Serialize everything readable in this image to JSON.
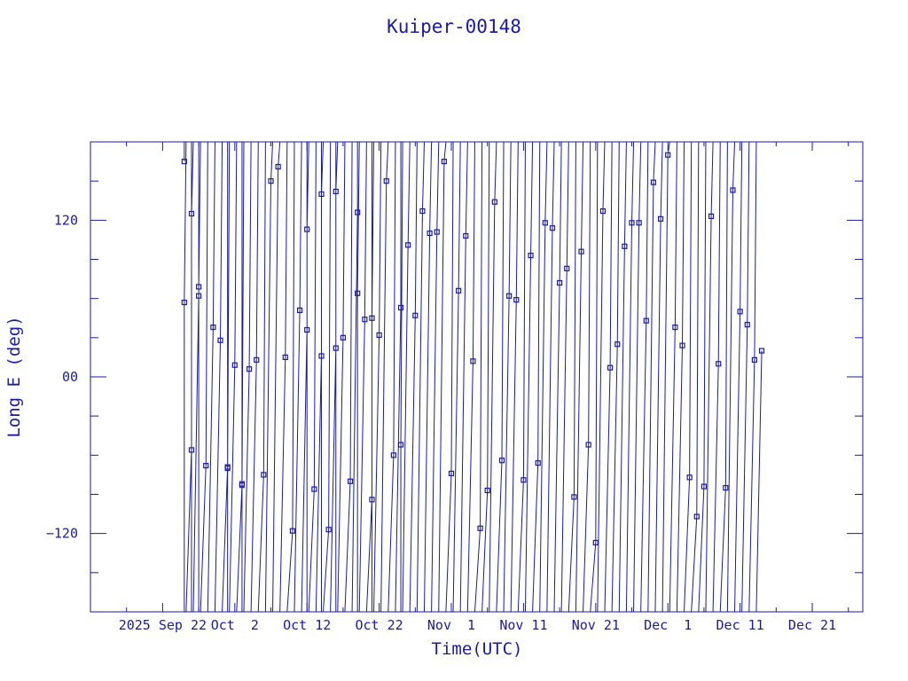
{
  "chart_data": {
    "type": "line",
    "title": "Kuiper-00148",
    "xlabel": "Time(UTC)",
    "ylabel": "Long E (deg)",
    "x_tick_labels": [
      "2025 Sep 22",
      "Oct  2",
      "Oct 12",
      "Oct 22",
      "Nov  1",
      "Nov 11",
      "Nov 21",
      "Dec  1",
      "Dec 11",
      "Dec 21"
    ],
    "x_tick_dates": [
      "2025-09-22",
      "2025-10-02",
      "2025-10-12",
      "2025-10-22",
      "2025-11-01",
      "2025-11-11",
      "2025-11-21",
      "2025-12-01",
      "2025-12-11",
      "2025-12-21"
    ],
    "xlim": [
      "2025-09-12",
      "2025-12-28"
    ],
    "y_ticks": [
      -120,
      0,
      120
    ],
    "y_tick_labels": [
      "−120",
      "00",
      "120"
    ],
    "ylim": [
      -180,
      180
    ],
    "grid": false,
    "line_color": "#1a1aa6",
    "marker": "square",
    "series": [
      {
        "x": [
          "2025-09-25",
          "2025-09-25",
          "2025-09-26",
          "2025-09-26",
          "2025-09-27",
          "2025-09-27",
          "2025-09-28",
          "2025-09-29",
          "2025-09-30",
          "2025-10-01",
          "2025-10-01",
          "2025-10-02",
          "2025-10-03",
          "2025-10-03",
          "2025-10-04",
          "2025-10-05",
          "2025-10-06",
          "2025-10-07",
          "2025-10-08",
          "2025-10-09",
          "2025-10-10",
          "2025-10-11",
          "2025-10-12",
          "2025-10-12",
          "2025-10-13",
          "2025-10-14",
          "2025-10-14",
          "2025-10-15",
          "2025-10-16",
          "2025-10-16",
          "2025-10-17",
          "2025-10-18",
          "2025-10-19",
          "2025-10-19",
          "2025-10-20",
          "2025-10-21",
          "2025-10-21",
          "2025-10-22",
          "2025-10-23",
          "2025-10-24",
          "2025-10-25",
          "2025-10-25",
          "2025-10-26",
          "2025-10-27",
          "2025-10-28",
          "2025-10-29",
          "2025-10-30",
          "2025-10-31",
          "2025-11-01",
          "2025-11-02",
          "2025-11-03",
          "2025-11-04",
          "2025-11-05",
          "2025-11-06",
          "2025-11-07",
          "2025-11-08",
          "2025-11-09",
          "2025-11-10",
          "2025-11-11",
          "2025-11-12",
          "2025-11-13",
          "2025-11-14",
          "2025-11-15",
          "2025-11-16",
          "2025-11-17",
          "2025-11-18",
          "2025-11-19",
          "2025-11-20",
          "2025-11-21",
          "2025-11-22",
          "2025-11-23",
          "2025-11-24",
          "2025-11-25",
          "2025-11-26",
          "2025-11-27",
          "2025-11-28",
          "2025-11-29",
          "2025-11-30",
          "2025-12-01",
          "2025-12-02",
          "2025-12-03",
          "2025-12-04",
          "2025-12-05",
          "2025-12-06",
          "2025-12-07",
          "2025-12-08",
          "2025-12-09",
          "2025-12-10",
          "2025-12-11",
          "2025-12-12",
          "2025-12-13",
          "2025-12-14"
        ],
        "y": [
          165,
          57,
          -56,
          125,
          62,
          69,
          -68,
          38,
          28,
          -69,
          -70,
          9,
          -83,
          -82,
          6,
          13,
          -75,
          150,
          161,
          15,
          -118,
          51,
          36,
          113,
          -86,
          16,
          140,
          -117,
          22,
          142,
          30,
          -80,
          126,
          64,
          44,
          -94,
          45,
          32,
          150,
          -60,
          53,
          -52,
          101,
          47,
          127,
          110,
          111,
          165,
          -74,
          66,
          108,
          12,
          -116,
          -87,
          134,
          -64,
          62,
          59,
          -79,
          93,
          -66,
          118,
          114,
          72,
          83,
          -92,
          96,
          -52,
          -127,
          127,
          7,
          25,
          100,
          118,
          118,
          43,
          149,
          121,
          170,
          38,
          24,
          -77,
          -107,
          -84,
          123,
          10,
          -85,
          143,
          50,
          40,
          13,
          20
        ],
        "points_plotted": true
      }
    ]
  }
}
